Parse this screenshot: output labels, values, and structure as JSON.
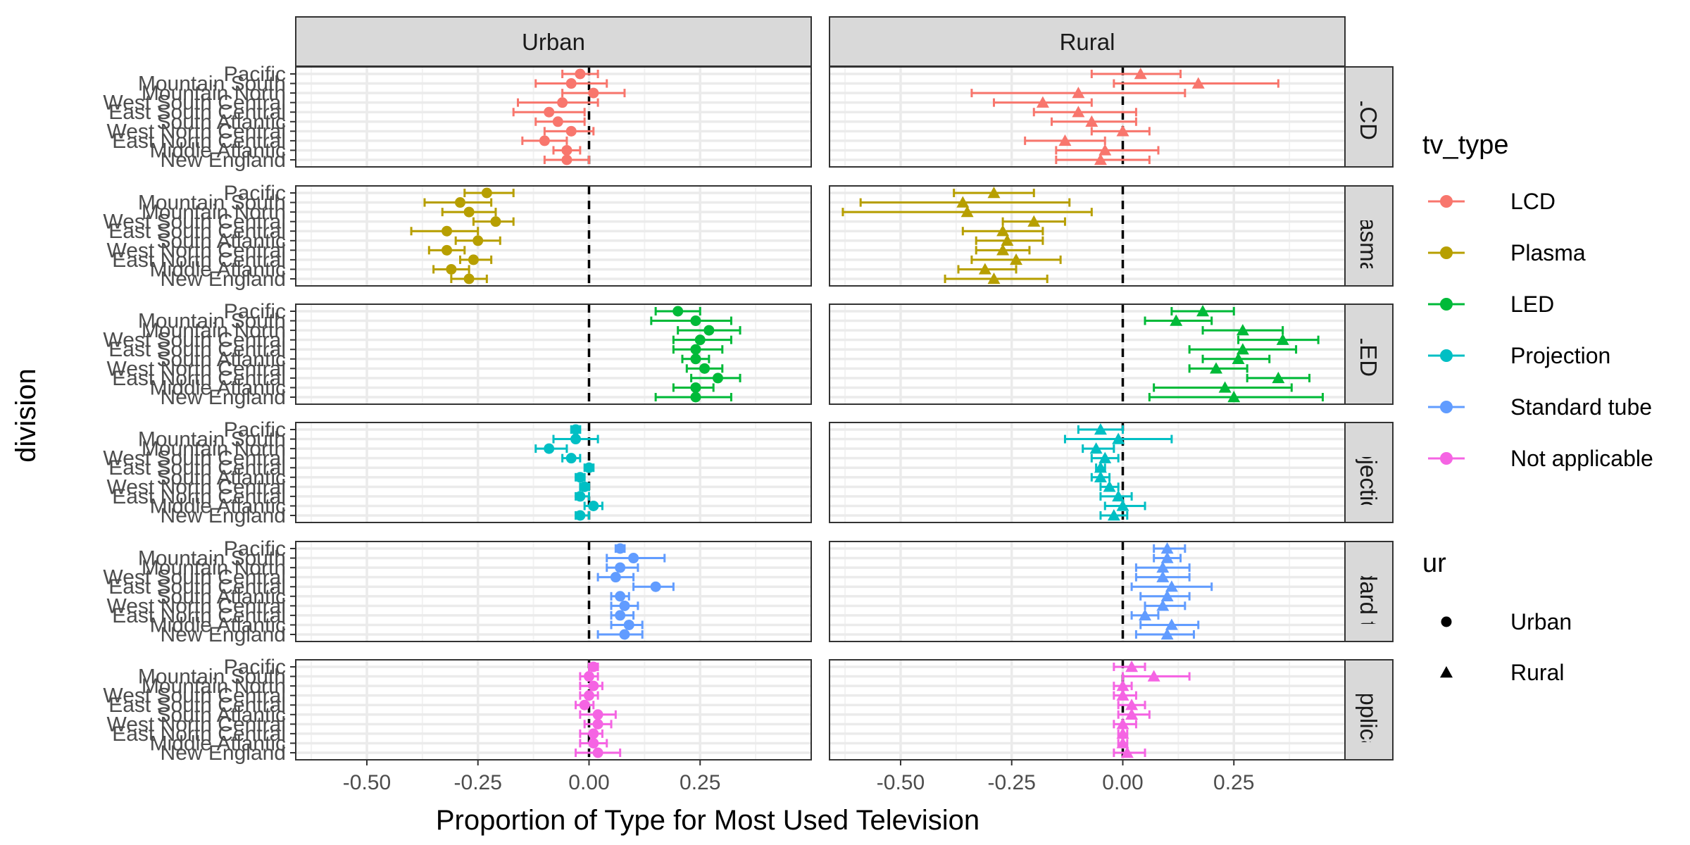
{
  "chart_data": {
    "type": "scatter",
    "subtype": "faceted dot plot with horizontal error bars",
    "xlabel": "Proportion of Type for Most Used Television",
    "ylabel": "division",
    "xlim": [
      -0.66,
      0.5
    ],
    "xticks": [
      -0.5,
      -0.25,
      0.0,
      0.25
    ],
    "xtick_labels": [
      "-0.50",
      "-0.25",
      "0.00",
      "0.25"
    ],
    "reference_line_x": 0,
    "grid": true,
    "col_facets": [
      "Urban",
      "Rural"
    ],
    "row_facets": [
      "LCD",
      "Plasma",
      "LED",
      "Projection",
      "Standard tube",
      "Not applicable"
    ],
    "row_strip_labels": [
      "LCD",
      "Plasma",
      "LED",
      "Projectior",
      "andard tu",
      "t applica"
    ],
    "categories": [
      "Pacific",
      "Mountain South",
      "Mountain North",
      "West South Central",
      "East South Central",
      "South Atlantic",
      "West North Central",
      "East North Central",
      "Middle Atlantic",
      "New England"
    ],
    "series": [
      {
        "name": "LCD",
        "color": "#F8766D",
        "panels": {
          "Urban": {
            "x": [
              -0.02,
              -0.04,
              0.01,
              -0.06,
              -0.09,
              -0.07,
              -0.04,
              -0.1,
              -0.05,
              -0.05
            ],
            "lo": [
              -0.06,
              -0.12,
              -0.06,
              -0.16,
              -0.17,
              -0.12,
              -0.1,
              -0.15,
              -0.08,
              -0.1
            ],
            "hi": [
              0.02,
              0.04,
              0.08,
              0.02,
              -0.01,
              -0.01,
              0.01,
              -0.05,
              -0.02,
              0.0
            ]
          },
          "Rural": {
            "x": [
              0.04,
              0.17,
              -0.1,
              -0.18,
              -0.1,
              -0.07,
              0.0,
              -0.13,
              -0.04,
              -0.05
            ],
            "lo": [
              -0.07,
              -0.02,
              -0.34,
              -0.29,
              -0.2,
              -0.16,
              -0.07,
              -0.22,
              -0.15,
              -0.15
            ],
            "hi": [
              0.13,
              0.35,
              0.14,
              -0.07,
              0.03,
              0.03,
              0.06,
              -0.04,
              0.08,
              0.06
            ]
          }
        }
      },
      {
        "name": "Plasma",
        "color": "#B79F00",
        "panels": {
          "Urban": {
            "x": [
              -0.23,
              -0.29,
              -0.27,
              -0.21,
              -0.32,
              -0.25,
              -0.32,
              -0.26,
              -0.31,
              -0.27
            ],
            "lo": [
              -0.28,
              -0.37,
              -0.33,
              -0.26,
              -0.4,
              -0.3,
              -0.36,
              -0.29,
              -0.35,
              -0.31
            ],
            "hi": [
              -0.17,
              -0.22,
              -0.21,
              -0.17,
              -0.25,
              -0.2,
              -0.28,
              -0.22,
              -0.27,
              -0.23
            ]
          },
          "Rural": {
            "x": [
              -0.29,
              -0.36,
              -0.35,
              -0.2,
              -0.27,
              -0.26,
              -0.27,
              -0.24,
              -0.31,
              -0.29
            ],
            "lo": [
              -0.38,
              -0.59,
              -0.63,
              -0.27,
              -0.36,
              -0.33,
              -0.33,
              -0.34,
              -0.37,
              -0.4
            ],
            "hi": [
              -0.2,
              -0.12,
              -0.07,
              -0.13,
              -0.18,
              -0.18,
              -0.21,
              -0.14,
              -0.24,
              -0.17
            ]
          }
        }
      },
      {
        "name": "LED",
        "color": "#00BA38",
        "panels": {
          "Urban": {
            "x": [
              0.2,
              0.24,
              0.27,
              0.25,
              0.24,
              0.24,
              0.26,
              0.29,
              0.24,
              0.24
            ],
            "lo": [
              0.15,
              0.14,
              0.2,
              0.19,
              0.19,
              0.21,
              0.22,
              0.23,
              0.19,
              0.15
            ],
            "hi": [
              0.25,
              0.32,
              0.34,
              0.32,
              0.3,
              0.27,
              0.3,
              0.34,
              0.28,
              0.32
            ]
          },
          "Rural": {
            "x": [
              0.18,
              0.12,
              0.27,
              0.36,
              0.27,
              0.26,
              0.21,
              0.35,
              0.23,
              0.25
            ],
            "lo": [
              0.11,
              0.05,
              0.18,
              0.26,
              0.15,
              0.18,
              0.15,
              0.28,
              0.07,
              0.06
            ],
            "hi": [
              0.25,
              0.2,
              0.36,
              0.44,
              0.39,
              0.33,
              0.28,
              0.42,
              0.38,
              0.45
            ]
          }
        }
      },
      {
        "name": "Projection",
        "color": "#00BFC4",
        "panels": {
          "Urban": {
            "x": [
              -0.03,
              -0.03,
              -0.09,
              -0.04,
              0.0,
              -0.02,
              -0.01,
              -0.02,
              0.01,
              -0.02
            ],
            "lo": [
              -0.04,
              -0.08,
              -0.12,
              -0.06,
              -0.01,
              -0.03,
              -0.02,
              -0.03,
              -0.01,
              -0.03
            ],
            "hi": [
              -0.02,
              0.02,
              -0.05,
              -0.02,
              0.01,
              -0.01,
              0.0,
              0.0,
              0.03,
              0.0
            ]
          },
          "Rural": {
            "x": [
              -0.05,
              -0.01,
              -0.06,
              -0.04,
              -0.05,
              -0.05,
              -0.03,
              -0.01,
              0.0,
              -0.02
            ],
            "lo": [
              -0.1,
              -0.13,
              -0.09,
              -0.07,
              -0.06,
              -0.07,
              -0.05,
              -0.05,
              -0.04,
              -0.05
            ],
            "hi": [
              0.0,
              0.11,
              -0.02,
              -0.01,
              -0.04,
              -0.03,
              -0.01,
              0.02,
              0.05,
              0.01
            ]
          }
        }
      },
      {
        "name": "Standard tube",
        "color": "#619CFF",
        "panels": {
          "Urban": {
            "x": [
              0.07,
              0.1,
              0.07,
              0.06,
              0.15,
              0.07,
              0.08,
              0.07,
              0.09,
              0.08
            ],
            "lo": [
              0.06,
              0.04,
              0.04,
              0.02,
              0.1,
              0.05,
              0.05,
              0.05,
              0.05,
              0.02
            ],
            "hi": [
              0.08,
              0.17,
              0.11,
              0.1,
              0.19,
              0.09,
              0.11,
              0.1,
              0.12,
              0.12
            ]
          },
          "Rural": {
            "x": [
              0.1,
              0.1,
              0.09,
              0.09,
              0.11,
              0.1,
              0.09,
              0.05,
              0.11,
              0.1
            ],
            "lo": [
              0.07,
              0.07,
              0.03,
              0.03,
              0.02,
              0.04,
              0.05,
              0.02,
              0.04,
              0.03
            ],
            "hi": [
              0.14,
              0.13,
              0.15,
              0.15,
              0.2,
              0.15,
              0.14,
              0.08,
              0.17,
              0.16
            ]
          }
        }
      },
      {
        "name": "Not applicable",
        "color": "#F564E3",
        "panels": {
          "Urban": {
            "x": [
              0.01,
              0.0,
              0.01,
              0.0,
              -0.01,
              0.02,
              0.02,
              0.01,
              0.01,
              0.02
            ],
            "lo": [
              0.0,
              -0.02,
              -0.02,
              -0.02,
              -0.03,
              -0.02,
              -0.01,
              -0.02,
              -0.02,
              -0.03
            ],
            "hi": [
              0.02,
              0.02,
              0.03,
              0.02,
              0.01,
              0.06,
              0.05,
              0.03,
              0.04,
              0.07
            ]
          },
          "Rural": {
            "x": [
              0.02,
              0.07,
              0.0,
              0.0,
              0.02,
              0.02,
              0.0,
              0.0,
              0.0,
              0.01
            ],
            "lo": [
              -0.02,
              0.0,
              -0.02,
              -0.02,
              -0.01,
              -0.01,
              -0.02,
              -0.01,
              -0.01,
              -0.02
            ],
            "hi": [
              0.05,
              0.15,
              0.02,
              0.03,
              0.05,
              0.06,
              0.03,
              0.01,
              0.01,
              0.05
            ]
          }
        }
      }
    ],
    "legends": [
      {
        "title": "tv_type",
        "entries": [
          {
            "label": "LCD",
            "color": "#F8766D"
          },
          {
            "label": "Plasma",
            "color": "#B79F00"
          },
          {
            "label": "LED",
            "color": "#00BA38"
          },
          {
            "label": "Projection",
            "color": "#00BFC4"
          },
          {
            "label": "Standard tube",
            "color": "#619CFF"
          },
          {
            "label": "Not applicable",
            "color": "#F564E3"
          }
        ]
      },
      {
        "title": "ur",
        "entries": [
          {
            "label": "Urban",
            "shape": "circle"
          },
          {
            "label": "Rural",
            "shape": "triangle"
          }
        ]
      }
    ],
    "legend_position": "right"
  }
}
